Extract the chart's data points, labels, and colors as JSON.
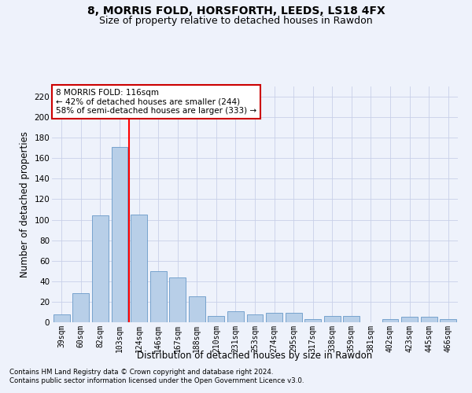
{
  "title": "8, MORRIS FOLD, HORSFORTH, LEEDS, LS18 4FX",
  "subtitle": "Size of property relative to detached houses in Rawdon",
  "xlabel": "Distribution of detached houses by size in Rawdon",
  "ylabel": "Number of detached properties",
  "categories": [
    "39sqm",
    "60sqm",
    "82sqm",
    "103sqm",
    "124sqm",
    "146sqm",
    "167sqm",
    "188sqm",
    "210sqm",
    "231sqm",
    "253sqm",
    "274sqm",
    "295sqm",
    "317sqm",
    "338sqm",
    "359sqm",
    "381sqm",
    "402sqm",
    "423sqm",
    "445sqm",
    "466sqm"
  ],
  "values": [
    8,
    28,
    104,
    171,
    105,
    50,
    44,
    25,
    6,
    11,
    8,
    9,
    9,
    3,
    6,
    6,
    0,
    3,
    5,
    5,
    3
  ],
  "bar_color": "#b8cfe8",
  "bar_edge_color": "#6899c8",
  "red_line_x": 3.5,
  "annotation_text": "8 MORRIS FOLD: 116sqm\n← 42% of detached houses are smaller (244)\n58% of semi-detached houses are larger (333) →",
  "annotation_box_color": "#ffffff",
  "annotation_box_edge_color": "#cc0000",
  "footer1": "Contains HM Land Registry data © Crown copyright and database right 2024.",
  "footer2": "Contains public sector information licensed under the Open Government Licence v3.0.",
  "bg_color": "#eef2fb",
  "grid_color": "#c8d0e8",
  "title_fontsize": 10,
  "subtitle_fontsize": 9,
  "axis_label_fontsize": 8.5,
  "tick_fontsize": 7,
  "yticks": [
    0,
    20,
    40,
    60,
    80,
    100,
    120,
    140,
    160,
    180,
    200,
    220
  ],
  "ylim": [
    0,
    230
  ]
}
